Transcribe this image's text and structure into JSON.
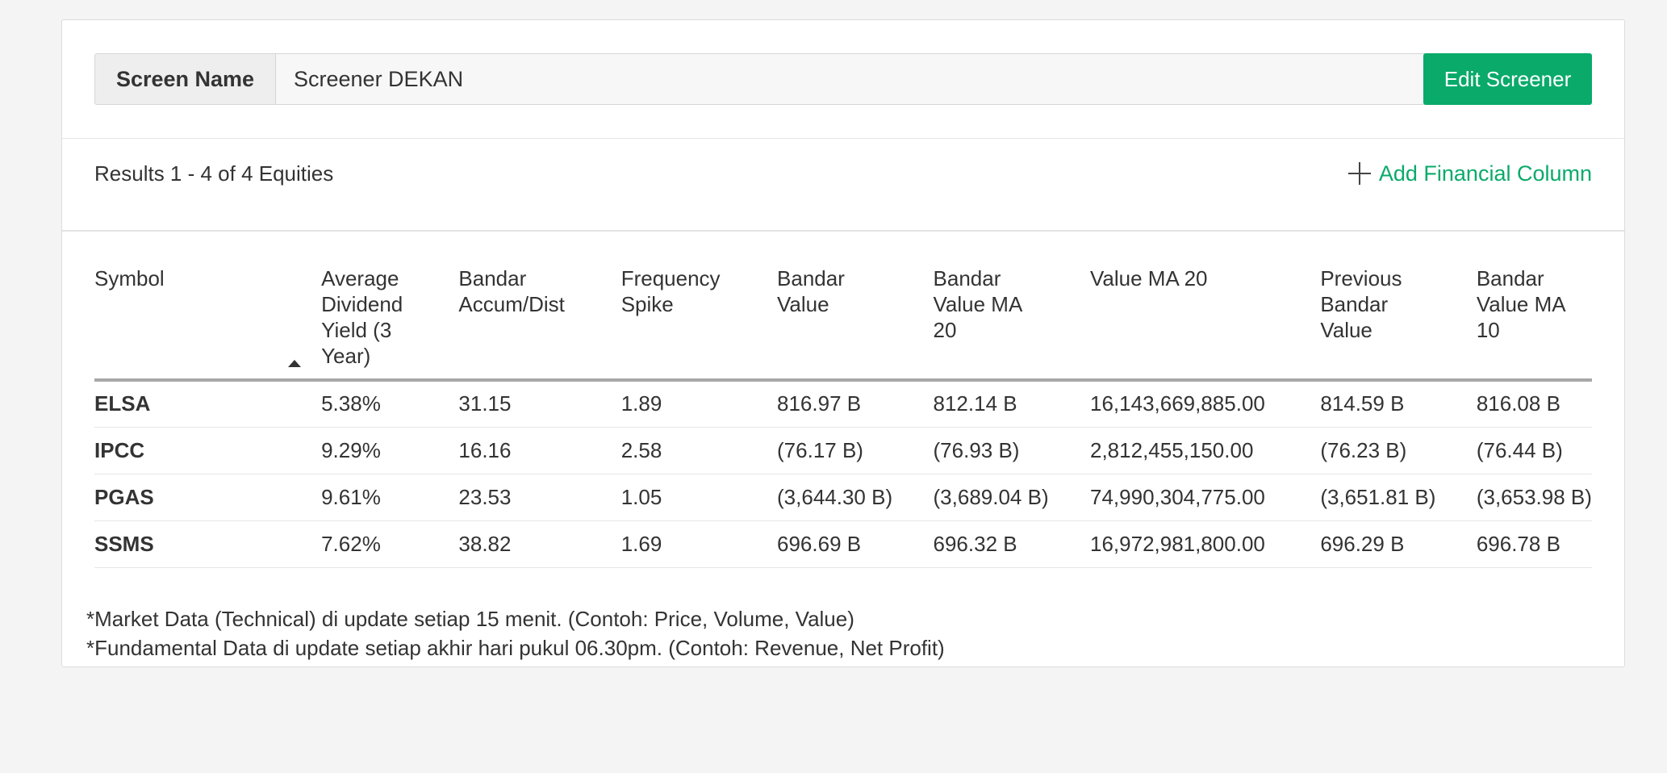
{
  "screen": {
    "label": "Screen Name",
    "value": "Screener DEKAN",
    "edit_button": "Edit Screener"
  },
  "results": {
    "summary": "Results 1 - 4 of 4 Equities",
    "add_column_label": "Add Financial Column"
  },
  "table": {
    "headers": [
      [
        "Symbol"
      ],
      [
        "Average",
        "Dividend",
        "Yield (3",
        "Year)"
      ],
      [
        "Bandar",
        "Accum/Dist"
      ],
      [
        "Frequency",
        "Spike"
      ],
      [
        "Bandar",
        "Value"
      ],
      [
        "Bandar",
        "Value MA",
        "20"
      ],
      [
        "Value MA 20"
      ],
      [
        "Previous",
        "Bandar",
        "Value"
      ],
      [
        "Bandar",
        "Value MA",
        "10"
      ]
    ],
    "rows": [
      [
        "ELSA",
        "5.38%",
        "31.15",
        "1.89",
        "816.97 B",
        "812.14 B",
        "16,143,669,885.00",
        "814.59 B",
        "816.08 B"
      ],
      [
        "IPCC",
        "9.29%",
        "16.16",
        "2.58",
        "(76.17 B)",
        "(76.93 B)",
        "2,812,455,150.00",
        "(76.23 B)",
        "(76.44 B)"
      ],
      [
        "PGAS",
        "9.61%",
        "23.53",
        "1.05",
        "(3,644.30 B)",
        "(3,689.04 B)",
        "74,990,304,775.00",
        "(3,651.81 B)",
        "(3,653.98 B)"
      ],
      [
        "SSMS",
        "7.62%",
        "38.82",
        "1.69",
        "696.69 B",
        "696.32 B",
        "16,972,981,800.00",
        "696.29 B",
        "696.78 B"
      ]
    ]
  },
  "notes": [
    "*Market Data (Technical) di update setiap 15 menit. (Contoh: Price, Volume, Value)",
    "*Fundamental Data di update setiap akhir hari pukul 06.30pm. (Contoh: Revenue, Net Profit)"
  ],
  "colors": {
    "accent": "#0aaa6a",
    "background": "#f4f4f4"
  }
}
